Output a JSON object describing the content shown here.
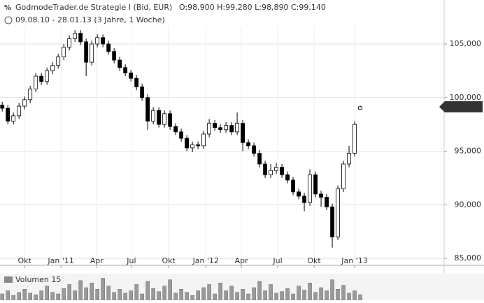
{
  "chart_data": {
    "type": "candlestick",
    "title": "GodmodeTrader.de Strategie I (Bid, EUR)",
    "quote": "O:98,900  H:99,280  L:98,890  C:99,140",
    "subtitle": "09.08.10 - 28.01.13 (3 Jahre, 1 Woche)",
    "last_label": "99,140",
    "xlim": [
      -0.4,
      79
    ],
    "xticks": [
      {
        "value": 4,
        "label": "Okt"
      },
      {
        "value": 10.5,
        "label": "Jan '11"
      },
      {
        "value": 16.9,
        "label": "Apr"
      },
      {
        "value": 23.1,
        "label": "Jul"
      },
      {
        "value": 29.75,
        "label": "Okt"
      },
      {
        "value": 36.4,
        "label": "Jan '12"
      },
      {
        "value": 42.75,
        "label": "Apr"
      },
      {
        "value": 49.25,
        "label": "Jul"
      },
      {
        "value": 55.75,
        "label": "Okt"
      },
      {
        "value": 63,
        "label": "Jan '13"
      }
    ],
    "ylim": [
      84350,
      106500
    ],
    "yticks": [
      {
        "value": 85000,
        "label": "85,000"
      },
      {
        "value": 90000,
        "label": "90,000"
      },
      {
        "value": 95000,
        "label": "95,000"
      },
      {
        "value": 100000,
        "label": "100,000"
      },
      {
        "value": 105000,
        "label": "105,000"
      }
    ],
    "grid": true,
    "up_color": "#ffffff",
    "down_color": "#000000",
    "open": [
      99300,
      99000,
      97800,
      98300,
      99200,
      99800,
      100800,
      102000,
      101500,
      102500,
      103000,
      103800,
      104700,
      105500,
      106000,
      105200,
      103300,
      105000,
      105600,
      105000,
      104300,
      103500,
      102800,
      102300,
      101800,
      101000,
      100000,
      97800,
      98800,
      97500,
      98500,
      97300,
      96800,
      96200,
      95300,
      95600,
      95500,
      96600,
      97600,
      97200,
      97000,
      97400,
      96800,
      97600,
      95800,
      95500,
      94800,
      93800,
      92800,
      93200,
      93500,
      92800,
      92300,
      91200,
      90800,
      90200,
      92800,
      91000,
      90700,
      89800,
      87000,
      91500,
      93800,
      94800,
      98900
    ],
    "high": [
      99600,
      99300,
      98600,
      99500,
      100100,
      101100,
      102300,
      102300,
      102800,
      103300,
      104100,
      105000,
      105800,
      106300,
      106300,
      105500,
      105300,
      105900,
      105900,
      105300,
      104600,
      103800,
      103100,
      102600,
      102100,
      101300,
      100300,
      99100,
      99100,
      98800,
      98800,
      97600,
      97100,
      96500,
      95900,
      95900,
      96900,
      98000,
      97900,
      97500,
      97700,
      97700,
      98600,
      97900,
      96100,
      95800,
      95100,
      94100,
      93800,
      93900,
      93800,
      93100,
      92600,
      91500,
      91100,
      93300,
      93100,
      91300,
      91000,
      90100,
      91800,
      94100,
      95500,
      97800,
      99280
    ],
    "low": [
      98700,
      97500,
      97500,
      98000,
      98900,
      99500,
      100500,
      101200,
      101200,
      102200,
      102700,
      103500,
      104400,
      105200,
      104900,
      102000,
      103000,
      104700,
      104700,
      104000,
      103200,
      102500,
      102000,
      101500,
      100700,
      99700,
      97000,
      97500,
      97200,
      97200,
      97000,
      96500,
      95900,
      95000,
      94900,
      95200,
      95200,
      96300,
      96900,
      96700,
      96700,
      96500,
      96500,
      95000,
      95200,
      94500,
      93500,
      92500,
      92500,
      92900,
      92500,
      92000,
      90900,
      90500,
      89400,
      89900,
      90700,
      89800,
      89500,
      86000,
      86700,
      91200,
      93500,
      94500,
      98890
    ],
    "close": [
      99000,
      97800,
      98300,
      99200,
      99800,
      100800,
      102000,
      101500,
      102500,
      103000,
      103800,
      104700,
      105500,
      106000,
      105200,
      103300,
      105000,
      105600,
      105000,
      104300,
      103500,
      102800,
      102300,
      101800,
      101000,
      100000,
      97800,
      98800,
      97500,
      98500,
      97300,
      96800,
      96200,
      95300,
      95600,
      95500,
      96600,
      97600,
      97200,
      97000,
      97400,
      96800,
      97600,
      95800,
      95500,
      94800,
      93800,
      92800,
      93200,
      93500,
      92800,
      92300,
      91200,
      90800,
      90200,
      92800,
      91000,
      90700,
      89800,
      87000,
      91500,
      93800,
      94800,
      97500,
      99140
    ],
    "volume_label": "Volumen  15",
    "volume_ylim": [
      0,
      32
    ],
    "volume": [
      8,
      12,
      6,
      10,
      14,
      9,
      7,
      12,
      18,
      10,
      8,
      15,
      20,
      12,
      25,
      16,
      22,
      14,
      28,
      18,
      10,
      14,
      9,
      12,
      20,
      8,
      24,
      15,
      11,
      18,
      26,
      9,
      14,
      10,
      6,
      12,
      16,
      20,
      8,
      22,
      12,
      18,
      10,
      14,
      8,
      16,
      24,
      12,
      20,
      9,
      11,
      15,
      8,
      18,
      13,
      22,
      10,
      16,
      12,
      26,
      14,
      19,
      9,
      12,
      7
    ],
    "volume_color": "#9a9a9a"
  }
}
